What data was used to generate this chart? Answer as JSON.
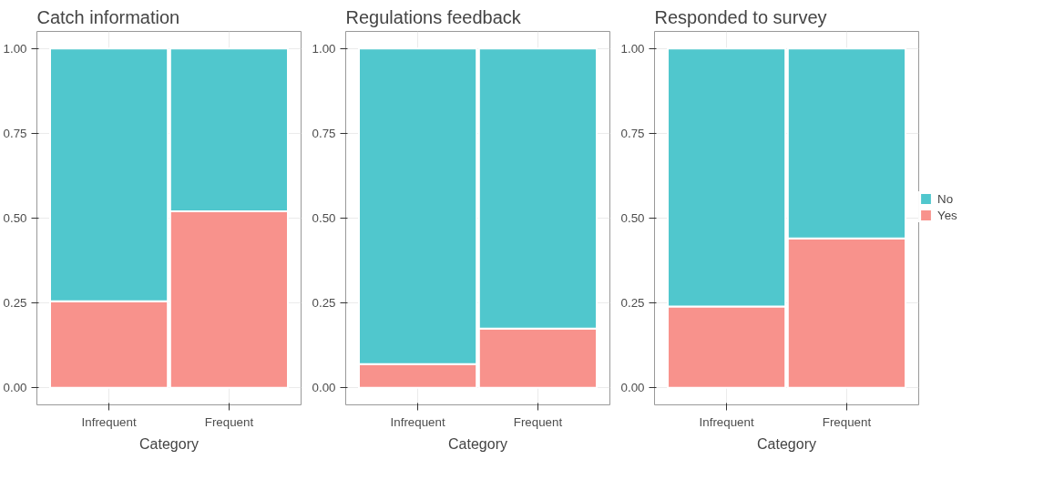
{
  "chart_data": [
    {
      "type": "bar",
      "title": "Catch information",
      "xlabel": "Category",
      "categories": [
        "Infrequent",
        "Frequent"
      ],
      "stacked": true,
      "ylim": [
        -0.05,
        1.05
      ],
      "yticks": [
        {
          "value": 0,
          "label": "0.00"
        },
        {
          "value": 0.25,
          "label": "0.25"
        },
        {
          "value": 0.5,
          "label": "0.50"
        },
        {
          "value": 0.75,
          "label": "0.75"
        },
        {
          "value": 1,
          "label": "1.00"
        }
      ],
      "grid": true,
      "legend": false,
      "series": [
        {
          "color": "#f8908a",
          "values": [
            0.255,
            0.52
          ]
        },
        {
          "color": "#4dc6cc",
          "values": [
            0.745,
            0.48
          ]
        }
      ]
    },
    {
      "type": "bar",
      "title": "Regulations feedback",
      "xlabel": "Category",
      "categories": [
        "Infrequent",
        "Frequent"
      ],
      "stacked": true,
      "ylim": [
        -0.05,
        1.05
      ],
      "yticks": [
        {
          "value": 0,
          "label": "0.00"
        },
        {
          "value": 0.25,
          "label": "0.25"
        },
        {
          "value": 0.5,
          "label": "0.50"
        },
        {
          "value": 0.75,
          "label": "0.75"
        },
        {
          "value": 1,
          "label": "1.00"
        }
      ],
      "grid": true,
      "legend": false,
      "series": [
        {
          "color": "#f8908a",
          "values": [
            0.07,
            0.175
          ]
        },
        {
          "color": "#4dc6cc",
          "values": [
            0.93,
            0.825
          ]
        }
      ]
    },
    {
      "type": "bar",
      "title": "Responded to survey",
      "xlabel": "Category",
      "categories": [
        "Infrequent",
        "Frequent"
      ],
      "stacked": true,
      "ylim": [
        -0.05,
        1.05
      ],
      "yticks": [
        {
          "value": 0,
          "label": "0.00"
        },
        {
          "value": 0.25,
          "label": "0.25"
        },
        {
          "value": 0.5,
          "label": "0.50"
        },
        {
          "value": 0.75,
          "label": "0.75"
        },
        {
          "value": 1,
          "label": "1.00"
        }
      ],
      "grid": true,
      "legend": "right",
      "series": [
        {
          "name": "Yes",
          "color": "#f8908a",
          "values": [
            0.24,
            0.44
          ]
        },
        {
          "name": "No",
          "color": "#4dc6cc",
          "values": [
            0.76,
            0.56
          ]
        }
      ]
    }
  ]
}
